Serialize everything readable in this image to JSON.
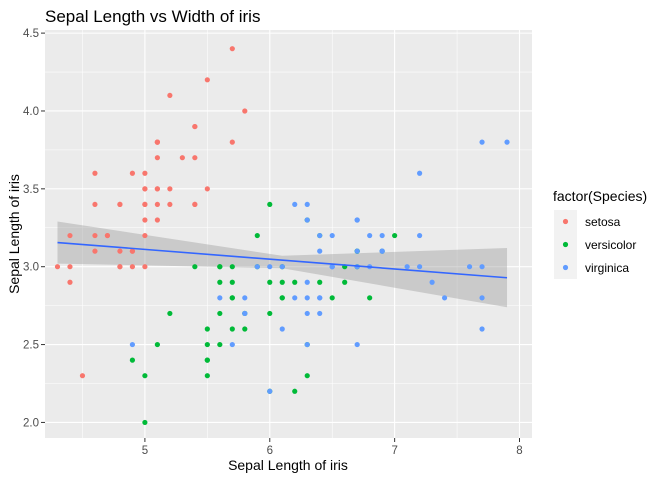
{
  "chart_data": {
    "type": "scatter",
    "title": "Sepal Length vs Width of iris",
    "xlabel": "Sepal Length of iris",
    "ylabel": "Sepal Length of iris",
    "xlim": [
      4.2,
      8.1
    ],
    "ylim": [
      1.9,
      4.52
    ],
    "x_ticks": [
      5,
      6,
      7,
      8
    ],
    "x_tick_labels": [
      "5",
      "6",
      "7",
      "8"
    ],
    "y_ticks": [
      2.0,
      2.5,
      3.0,
      3.5,
      4.0,
      4.5
    ],
    "y_tick_labels": [
      "2.0",
      "2.5",
      "3.0",
      "3.5",
      "4.0",
      "4.5"
    ],
    "grid": true,
    "legend": {
      "title": "factor(Species)",
      "position": "right"
    },
    "series": [
      {
        "name": "setosa",
        "color": "#F8766D",
        "points": [
          [
            5.1,
            3.5
          ],
          [
            4.9,
            3.0
          ],
          [
            4.7,
            3.2
          ],
          [
            4.6,
            3.1
          ],
          [
            5.0,
            3.6
          ],
          [
            5.4,
            3.9
          ],
          [
            4.6,
            3.4
          ],
          [
            5.0,
            3.4
          ],
          [
            4.4,
            2.9
          ],
          [
            4.9,
            3.1
          ],
          [
            5.4,
            3.7
          ],
          [
            4.8,
            3.4
          ],
          [
            4.8,
            3.0
          ],
          [
            4.3,
            3.0
          ],
          [
            5.8,
            4.0
          ],
          [
            5.7,
            4.4
          ],
          [
            5.4,
            3.9
          ],
          [
            5.1,
            3.5
          ],
          [
            5.7,
            3.8
          ],
          [
            5.1,
            3.8
          ],
          [
            5.4,
            3.4
          ],
          [
            5.1,
            3.7
          ],
          [
            4.6,
            3.6
          ],
          [
            5.1,
            3.3
          ],
          [
            4.8,
            3.4
          ],
          [
            5.0,
            3.0
          ],
          [
            5.0,
            3.4
          ],
          [
            5.2,
            3.5
          ],
          [
            5.2,
            3.4
          ],
          [
            4.7,
            3.2
          ],
          [
            4.8,
            3.1
          ],
          [
            5.4,
            3.4
          ],
          [
            5.2,
            4.1
          ],
          [
            5.5,
            4.2
          ],
          [
            4.9,
            3.1
          ],
          [
            5.0,
            3.2
          ],
          [
            5.5,
            3.5
          ],
          [
            4.9,
            3.6
          ],
          [
            4.4,
            3.0
          ],
          [
            5.1,
            3.4
          ],
          [
            5.0,
            3.5
          ],
          [
            4.5,
            2.3
          ],
          [
            4.4,
            3.2
          ],
          [
            5.0,
            3.5
          ],
          [
            5.1,
            3.8
          ],
          [
            4.8,
            3.0
          ],
          [
            5.1,
            3.8
          ],
          [
            4.6,
            3.2
          ],
          [
            5.3,
            3.7
          ],
          [
            5.0,
            3.3
          ]
        ]
      },
      {
        "name": "versicolor",
        "color": "#00BA38",
        "points": [
          [
            7.0,
            3.2
          ],
          [
            6.4,
            3.2
          ],
          [
            6.9,
            3.1
          ],
          [
            5.5,
            2.3
          ],
          [
            6.5,
            2.8
          ],
          [
            5.7,
            2.8
          ],
          [
            6.3,
            3.3
          ],
          [
            4.9,
            2.4
          ],
          [
            6.6,
            2.9
          ],
          [
            5.2,
            2.7
          ],
          [
            5.0,
            2.0
          ],
          [
            5.9,
            3.0
          ],
          [
            6.0,
            2.2
          ],
          [
            6.1,
            2.9
          ],
          [
            5.6,
            2.9
          ],
          [
            6.7,
            3.1
          ],
          [
            5.6,
            3.0
          ],
          [
            5.8,
            2.7
          ],
          [
            6.2,
            2.2
          ],
          [
            5.6,
            2.5
          ],
          [
            5.9,
            3.2
          ],
          [
            6.1,
            2.8
          ],
          [
            6.3,
            2.5
          ],
          [
            6.1,
            2.8
          ],
          [
            6.4,
            2.9
          ],
          [
            6.6,
            3.0
          ],
          [
            6.8,
            2.8
          ],
          [
            6.7,
            3.0
          ],
          [
            6.0,
            2.9
          ],
          [
            5.7,
            2.6
          ],
          [
            5.5,
            2.4
          ],
          [
            5.5,
            2.4
          ],
          [
            5.8,
            2.7
          ],
          [
            6.0,
            2.7
          ],
          [
            5.4,
            3.0
          ],
          [
            6.0,
            3.4
          ],
          [
            6.7,
            3.1
          ],
          [
            6.3,
            2.3
          ],
          [
            5.6,
            3.0
          ],
          [
            5.5,
            2.5
          ],
          [
            5.5,
            2.6
          ],
          [
            6.1,
            3.0
          ],
          [
            5.8,
            2.6
          ],
          [
            5.0,
            2.3
          ],
          [
            5.6,
            2.7
          ],
          [
            5.7,
            3.0
          ],
          [
            5.7,
            2.9
          ],
          [
            6.2,
            2.9
          ],
          [
            5.1,
            2.5
          ],
          [
            5.7,
            2.8
          ]
        ]
      },
      {
        "name": "virginica",
        "color": "#619CFF",
        "points": [
          [
            6.3,
            3.3
          ],
          [
            5.8,
            2.7
          ],
          [
            7.1,
            3.0
          ],
          [
            6.3,
            2.9
          ],
          [
            6.5,
            3.0
          ],
          [
            7.6,
            3.0
          ],
          [
            4.9,
            2.5
          ],
          [
            7.3,
            2.9
          ],
          [
            6.7,
            2.5
          ],
          [
            7.2,
            3.6
          ],
          [
            6.5,
            3.2
          ],
          [
            6.4,
            2.7
          ],
          [
            6.8,
            3.0
          ],
          [
            5.7,
            2.5
          ],
          [
            5.8,
            2.8
          ],
          [
            6.4,
            3.2
          ],
          [
            6.5,
            3.0
          ],
          [
            7.7,
            3.8
          ],
          [
            7.7,
            2.6
          ],
          [
            6.0,
            2.2
          ],
          [
            6.9,
            3.2
          ],
          [
            5.6,
            2.8
          ],
          [
            7.7,
            2.8
          ],
          [
            6.3,
            2.7
          ],
          [
            6.7,
            3.3
          ],
          [
            7.2,
            3.2
          ],
          [
            6.2,
            2.8
          ],
          [
            6.1,
            3.0
          ],
          [
            6.4,
            2.8
          ],
          [
            7.2,
            3.0
          ],
          [
            7.4,
            2.8
          ],
          [
            7.9,
            3.8
          ],
          [
            6.4,
            2.8
          ],
          [
            6.3,
            2.8
          ],
          [
            6.1,
            2.6
          ],
          [
            7.7,
            3.0
          ],
          [
            6.3,
            3.4
          ],
          [
            6.4,
            3.1
          ],
          [
            6.0,
            3.0
          ],
          [
            6.9,
            3.1
          ],
          [
            6.7,
            3.1
          ],
          [
            6.9,
            3.1
          ],
          [
            5.8,
            2.7
          ],
          [
            6.8,
            3.2
          ],
          [
            6.7,
            3.3
          ],
          [
            6.7,
            3.0
          ],
          [
            6.3,
            2.5
          ],
          [
            6.5,
            3.0
          ],
          [
            6.2,
            3.4
          ],
          [
            5.9,
            3.0
          ]
        ]
      }
    ],
    "smooth": {
      "method": "lm",
      "color": "#3366FF",
      "band_color": "#999999",
      "line": [
        [
          4.3,
          3.155
        ],
        [
          7.9,
          2.929
        ]
      ],
      "band_upper": [
        [
          4.3,
          3.29
        ],
        [
          6.1,
          3.07
        ],
        [
          7.9,
          3.12
        ]
      ],
      "band_lower": [
        [
          4.3,
          3.02
        ],
        [
          6.1,
          2.99
        ],
        [
          7.9,
          2.74
        ]
      ]
    }
  }
}
